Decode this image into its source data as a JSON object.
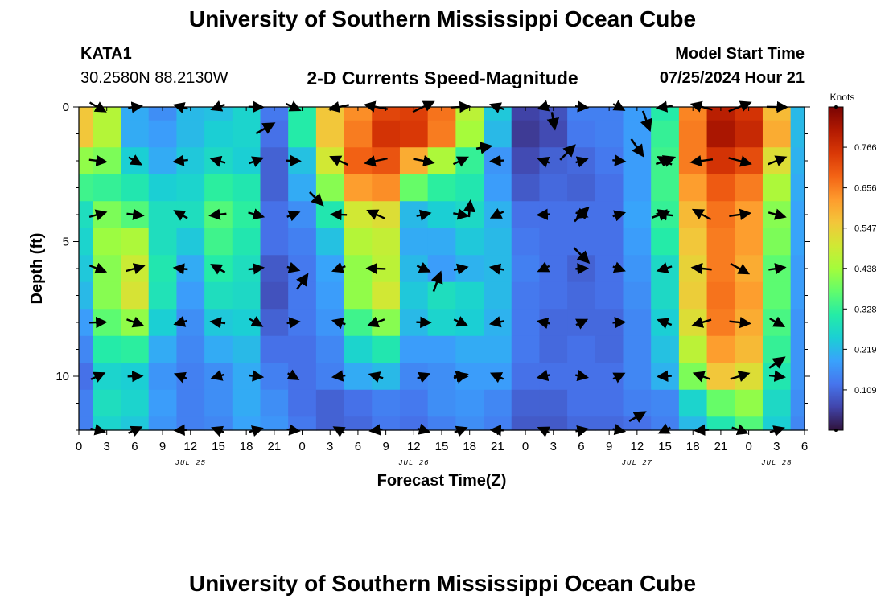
{
  "header": {
    "title": "University of Southern Mississippi Ocean Cube",
    "station": "KATA1",
    "coords": "30.2580N  88.2130W",
    "subtitle": "2-D Currents Speed-Magnitude",
    "model_start_label": "Model Start Time",
    "model_start_value": "07/25/2024 Hour 21"
  },
  "footer": {
    "title": "University of Southern Mississippi Ocean Cube"
  },
  "chart_data": {
    "type": "heatmap",
    "title": "2-D Currents Speed-Magnitude",
    "xlabel": "Forecast Time(Z)",
    "ylabel": "Depth (ft)",
    "x_range_hours": [
      0,
      78
    ],
    "y_range_ft": [
      0,
      12
    ],
    "x_ticks": [
      {
        "hour": 0,
        "label": "0"
      },
      {
        "hour": 3,
        "label": "3"
      },
      {
        "hour": 6,
        "label": "6"
      },
      {
        "hour": 9,
        "label": "9"
      },
      {
        "hour": 12,
        "label": "12"
      },
      {
        "hour": 15,
        "label": "15"
      },
      {
        "hour": 18,
        "label": "18"
      },
      {
        "hour": 21,
        "label": "21"
      },
      {
        "hour": 24,
        "label": "0"
      },
      {
        "hour": 27,
        "label": "3"
      },
      {
        "hour": 30,
        "label": "6"
      },
      {
        "hour": 33,
        "label": "9"
      },
      {
        "hour": 36,
        "label": "12"
      },
      {
        "hour": 39,
        "label": "15"
      },
      {
        "hour": 42,
        "label": "18"
      },
      {
        "hour": 45,
        "label": "21"
      },
      {
        "hour": 48,
        "label": "0"
      },
      {
        "hour": 51,
        "label": "3"
      },
      {
        "hour": 54,
        "label": "6"
      },
      {
        "hour": 57,
        "label": "9"
      },
      {
        "hour": 60,
        "label": "12"
      },
      {
        "hour": 63,
        "label": "15"
      },
      {
        "hour": 66,
        "label": "18"
      },
      {
        "hour": 69,
        "label": "21"
      },
      {
        "hour": 72,
        "label": "0"
      },
      {
        "hour": 75,
        "label": "3"
      },
      {
        "hour": 78,
        "label": "6"
      }
    ],
    "date_labels": [
      {
        "hour": 12,
        "label": "JUL 25"
      },
      {
        "hour": 36,
        "label": "JUL 26"
      },
      {
        "hour": 60,
        "label": "JUL 27"
      },
      {
        "hour": 75,
        "label": "JUL 28"
      }
    ],
    "y_ticks": [
      {
        "depth": 0,
        "label": "0"
      },
      {
        "depth": 5,
        "label": "5"
      },
      {
        "depth": 10,
        "label": "10"
      }
    ],
    "colorbar": {
      "label": "Knots",
      "min": 0.0,
      "max": 0.875,
      "ticks": [
        "0.766",
        "0.656",
        "0.547",
        "0.438",
        "0.328",
        "0.219",
        "0.109"
      ],
      "stops": [
        "#30123b",
        "#4145ab",
        "#4675ed",
        "#39a2fc",
        "#1bcfd4",
        "#24eca6",
        "#61fc6c",
        "#a4fc3b",
        "#d1e834",
        "#f3c63a",
        "#fe9b2d",
        "#f36315",
        "#d93806",
        "#b11901",
        "#7a0403"
      ]
    },
    "time_hours": [
      0,
      3,
      6,
      9,
      12,
      15,
      18,
      21,
      24,
      27,
      30,
      33,
      36,
      39,
      42,
      45,
      48,
      51,
      54,
      57,
      60,
      63,
      66,
      69,
      72,
      75,
      78
    ],
    "depth_ft": [
      0,
      1,
      2,
      3,
      4,
      5,
      6,
      7,
      8,
      9,
      10,
      11,
      12
    ],
    "speed_knots": [
      [
        0.56,
        0.46,
        0.2,
        0.16,
        0.22,
        0.23,
        0.26,
        0.13,
        0.31,
        0.56,
        0.64,
        0.73,
        0.74,
        0.67,
        0.47,
        0.24,
        0.06,
        0.08,
        0.14,
        0.14,
        0.18,
        0.31,
        0.65,
        0.8,
        0.76,
        0.58,
        0.22
      ],
      [
        0.56,
        0.46,
        0.2,
        0.18,
        0.22,
        0.25,
        0.26,
        0.12,
        0.31,
        0.56,
        0.66,
        0.76,
        0.75,
        0.66,
        0.44,
        0.22,
        0.05,
        0.07,
        0.13,
        0.14,
        0.18,
        0.33,
        0.66,
        0.82,
        0.78,
        0.6,
        0.22
      ],
      [
        0.42,
        0.4,
        0.25,
        0.2,
        0.24,
        0.27,
        0.25,
        0.1,
        0.23,
        0.5,
        0.69,
        0.71,
        0.6,
        0.45,
        0.33,
        0.17,
        0.07,
        0.1,
        0.11,
        0.13,
        0.18,
        0.34,
        0.66,
        0.76,
        0.72,
        0.52,
        0.21
      ],
      [
        0.34,
        0.33,
        0.3,
        0.25,
        0.26,
        0.32,
        0.3,
        0.1,
        0.2,
        0.41,
        0.62,
        0.64,
        0.38,
        0.32,
        0.3,
        0.18,
        0.09,
        0.11,
        0.1,
        0.12,
        0.18,
        0.34,
        0.62,
        0.7,
        0.66,
        0.45,
        0.2
      ],
      [
        0.28,
        0.4,
        0.36,
        0.28,
        0.28,
        0.36,
        0.32,
        0.12,
        0.16,
        0.3,
        0.5,
        0.52,
        0.22,
        0.25,
        0.27,
        0.21,
        0.12,
        0.12,
        0.12,
        0.12,
        0.19,
        0.33,
        0.58,
        0.67,
        0.62,
        0.41,
        0.19
      ],
      [
        0.26,
        0.43,
        0.45,
        0.28,
        0.24,
        0.34,
        0.3,
        0.12,
        0.14,
        0.23,
        0.46,
        0.48,
        0.2,
        0.2,
        0.24,
        0.22,
        0.13,
        0.12,
        0.12,
        0.12,
        0.18,
        0.31,
        0.56,
        0.66,
        0.62,
        0.4,
        0.19
      ],
      [
        0.24,
        0.41,
        0.49,
        0.3,
        0.2,
        0.31,
        0.28,
        0.09,
        0.13,
        0.19,
        0.42,
        0.47,
        0.22,
        0.18,
        0.21,
        0.22,
        0.14,
        0.12,
        0.1,
        0.12,
        0.17,
        0.27,
        0.54,
        0.66,
        0.6,
        0.37,
        0.18
      ],
      [
        0.22,
        0.41,
        0.51,
        0.29,
        0.18,
        0.28,
        0.27,
        0.08,
        0.13,
        0.18,
        0.42,
        0.5,
        0.24,
        0.28,
        0.26,
        0.22,
        0.13,
        0.12,
        0.11,
        0.12,
        0.16,
        0.27,
        0.55,
        0.67,
        0.62,
        0.37,
        0.18
      ],
      [
        0.18,
        0.37,
        0.42,
        0.25,
        0.16,
        0.24,
        0.25,
        0.1,
        0.13,
        0.17,
        0.34,
        0.41,
        0.22,
        0.26,
        0.25,
        0.21,
        0.13,
        0.11,
        0.11,
        0.11,
        0.15,
        0.25,
        0.52,
        0.66,
        0.6,
        0.35,
        0.17
      ],
      [
        0.15,
        0.31,
        0.32,
        0.2,
        0.15,
        0.2,
        0.22,
        0.12,
        0.12,
        0.15,
        0.26,
        0.3,
        0.18,
        0.18,
        0.2,
        0.2,
        0.13,
        0.11,
        0.12,
        0.11,
        0.15,
        0.23,
        0.47,
        0.62,
        0.58,
        0.33,
        0.17
      ],
      [
        0.12,
        0.26,
        0.25,
        0.17,
        0.14,
        0.16,
        0.2,
        0.14,
        0.12,
        0.14,
        0.2,
        0.22,
        0.15,
        0.16,
        0.18,
        0.18,
        0.12,
        0.12,
        0.12,
        0.12,
        0.15,
        0.21,
        0.4,
        0.56,
        0.52,
        0.3,
        0.17
      ],
      [
        0.14,
        0.28,
        0.26,
        0.18,
        0.14,
        0.16,
        0.2,
        0.16,
        0.12,
        0.1,
        0.12,
        0.14,
        0.13,
        0.16,
        0.17,
        0.15,
        0.1,
        0.1,
        0.12,
        0.12,
        0.14,
        0.15,
        0.26,
        0.38,
        0.42,
        0.27,
        0.16
      ],
      [
        0.14,
        0.26,
        0.24,
        0.17,
        0.14,
        0.15,
        0.19,
        0.17,
        0.13,
        0.1,
        0.11,
        0.13,
        0.12,
        0.14,
        0.16,
        0.14,
        0.09,
        0.09,
        0.11,
        0.11,
        0.12,
        0.14,
        0.22,
        0.3,
        0.36,
        0.25,
        0.15
      ]
    ],
    "vectors": [
      {
        "hour": 43.5,
        "depth": 1.5,
        "dir_deg": 10,
        "len": 0.65
      },
      {
        "hour": 42.0,
        "depth": 3.8,
        "dir_deg": 85,
        "len": 0.7
      },
      {
        "hour": 38.5,
        "depth": 6.5,
        "dir_deg": 70,
        "len": 0.9
      },
      {
        "hour": 41.0,
        "depth": 10.0,
        "dir_deg": 15,
        "len": 0.6
      },
      {
        "hour": 51.0,
        "depth": 0.5,
        "dir_deg": -80,
        "len": 0.75
      },
      {
        "hour": 52.5,
        "depth": 1.7,
        "dir_deg": 45,
        "len": 0.9
      },
      {
        "hour": 54.0,
        "depth": 4.0,
        "dir_deg": 45,
        "len": 0.85
      },
      {
        "hour": 54.0,
        "depth": 5.5,
        "dir_deg": -45,
        "len": 0.9
      },
      {
        "hour": 61.0,
        "depth": 0.5,
        "dir_deg": -70,
        "len": 0.9
      },
      {
        "hour": 60.0,
        "depth": 1.5,
        "dir_deg": -55,
        "len": 0.9
      },
      {
        "hour": 62.5,
        "depth": 4.0,
        "dir_deg": 20,
        "len": 0.8
      },
      {
        "hour": 63.0,
        "depth": 2.0,
        "dir_deg": 20,
        "len": 0.85
      },
      {
        "hour": 24.0,
        "depth": 6.5,
        "dir_deg": 55,
        "len": 0.8
      },
      {
        "hour": 25.5,
        "depth": 3.4,
        "dir_deg": -45,
        "len": 0.8
      },
      {
        "hour": 20.0,
        "depth": 0.8,
        "dir_deg": 30,
        "len": 0.9
      },
      {
        "hour": 75.0,
        "depth": 9.5,
        "dir_deg": 35,
        "len": 0.8
      },
      {
        "hour": 60.0,
        "depth": 11.5,
        "dir_deg": 30,
        "len": 0.8
      }
    ]
  }
}
